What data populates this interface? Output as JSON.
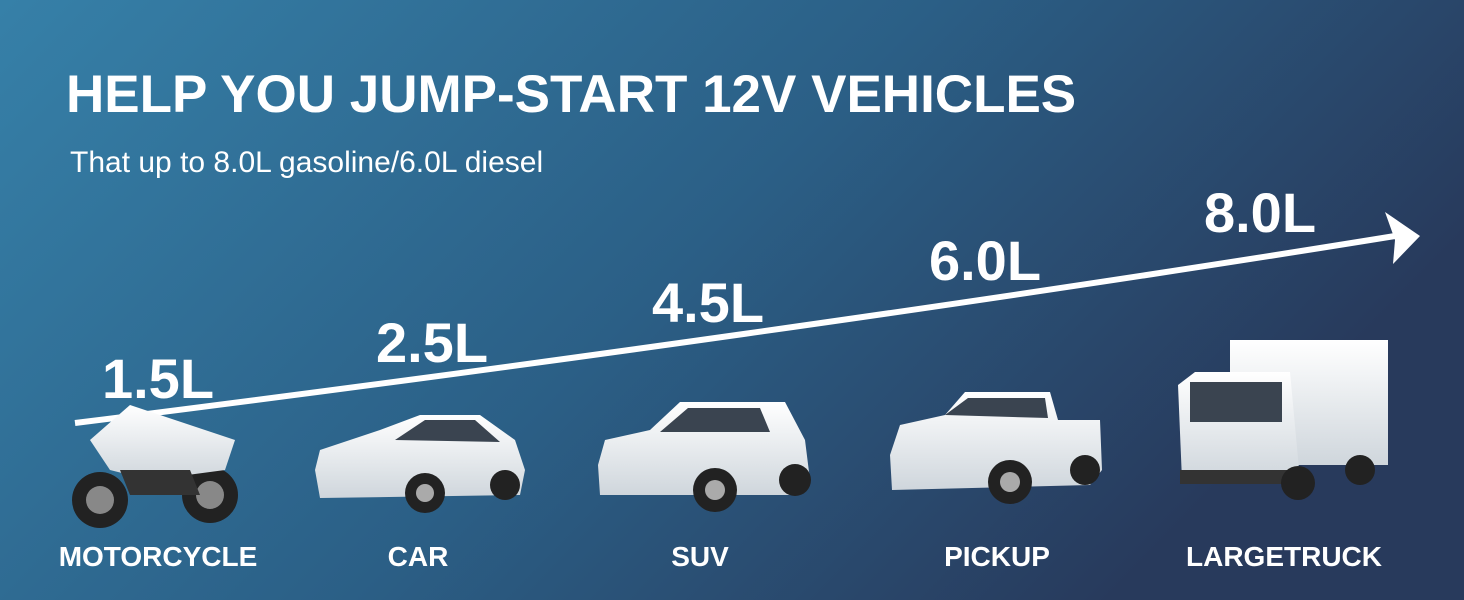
{
  "header": {
    "title": "HELP YOU JUMP-START 12V VEHICLES",
    "subtitle": "That up to 8.0L gasoline/6.0L diesel"
  },
  "vehicles": [
    {
      "label": "MOTORCYCLE",
      "capacity": "1.5L"
    },
    {
      "label": "CAR",
      "capacity": "2.5L"
    },
    {
      "label": "SUV",
      "capacity": "4.5L"
    },
    {
      "label": "PICKUP",
      "capacity": "6.0L"
    },
    {
      "label": "LARGETRUCK",
      "capacity": "8.0L"
    }
  ]
}
